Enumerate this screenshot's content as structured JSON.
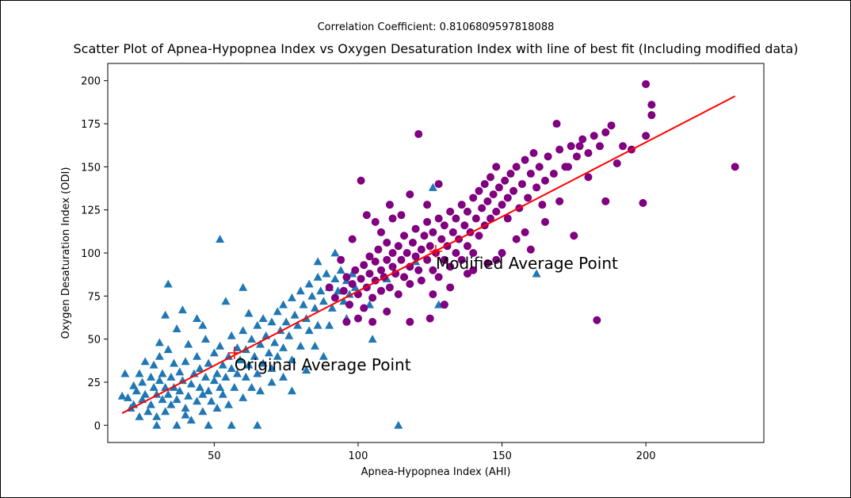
{
  "colors": {
    "original": "#1f77b4",
    "modified": "#800080",
    "fit_line": "#ff0000",
    "average_marker": "#ff0000"
  },
  "chart_data": {
    "type": "scatter",
    "suptitle": "Correlation Coefficient: 0.8106809597818088",
    "title": "Scatter Plot of Apnea-Hypopnea Index vs Oxygen Desaturation Index with line of best fit (Including modified data)",
    "xlabel": "Apnea-Hypopnea Index (AHI)",
    "ylabel": "Oxygen Desaturation Index (ODI)",
    "xlim": [
      13,
      241
    ],
    "ylim": [
      -10,
      210
    ],
    "xticks": [
      50,
      100,
      150,
      200
    ],
    "yticks": [
      0,
      25,
      50,
      75,
      100,
      125,
      150,
      175,
      200
    ],
    "grid": false,
    "series": [
      {
        "marker": "triangle",
        "points": [
          [
            18,
            17
          ],
          [
            20,
            16
          ],
          [
            19,
            30
          ],
          [
            21,
            10
          ],
          [
            22,
            12
          ],
          [
            23,
            20
          ],
          [
            24,
            5
          ],
          [
            25,
            15
          ],
          [
            22,
            23
          ],
          [
            24,
            30
          ],
          [
            25,
            25
          ],
          [
            26,
            18
          ],
          [
            27,
            8
          ],
          [
            26,
            37
          ],
          [
            28,
            28
          ],
          [
            28,
            12
          ],
          [
            29,
            22
          ],
          [
            30,
            18
          ],
          [
            30,
            5
          ],
          [
            29,
            35
          ],
          [
            31,
            26
          ],
          [
            31,
            40
          ],
          [
            32,
            15
          ],
          [
            33,
            8
          ],
          [
            32,
            30
          ],
          [
            33,
            22
          ],
          [
            34,
            18
          ],
          [
            35,
            28
          ],
          [
            35,
            12
          ],
          [
            34,
            44
          ],
          [
            36,
            36
          ],
          [
            36,
            22
          ],
          [
            37,
            0
          ],
          [
            37,
            15
          ],
          [
            38,
            31
          ],
          [
            38,
            20
          ],
          [
            39,
            26
          ],
          [
            40,
            10
          ],
          [
            40,
            37
          ],
          [
            41,
            17
          ],
          [
            41,
            47
          ],
          [
            42,
            24
          ],
          [
            42,
            3
          ],
          [
            43,
            30
          ],
          [
            44,
            14
          ],
          [
            44,
            40
          ],
          [
            45,
            22
          ],
          [
            45,
            33
          ],
          [
            46,
            18
          ],
          [
            46,
            8
          ],
          [
            47,
            28
          ],
          [
            47,
            50
          ],
          [
            48,
            20
          ],
          [
            48,
            36
          ],
          [
            49,
            14
          ],
          [
            50,
            26
          ],
          [
            50,
            42
          ],
          [
            51,
            30
          ],
          [
            51,
            10
          ],
          [
            52,
            22
          ],
          [
            52,
            46
          ],
          [
            53,
            35
          ],
          [
            53,
            18
          ],
          [
            54,
            28
          ],
          [
            55,
            40
          ],
          [
            55,
            12
          ],
          [
            56,
            33
          ],
          [
            56,
            52
          ],
          [
            57,
            22
          ],
          [
            58,
            45
          ],
          [
            58,
            30
          ],
          [
            59,
            38
          ],
          [
            60,
            16
          ],
          [
            60,
            55
          ],
          [
            61,
            28
          ],
          [
            61,
            44
          ],
          [
            62,
            35
          ],
          [
            63,
            50
          ],
          [
            63,
            22
          ],
          [
            64,
            40
          ],
          [
            65,
            58
          ],
          [
            65,
            30
          ],
          [
            66,
            47
          ],
          [
            67,
            36
          ],
          [
            67,
            62
          ],
          [
            68,
            52
          ],
          [
            69,
            42
          ],
          [
            70,
            60
          ],
          [
            70,
            33
          ],
          [
            71,
            48
          ],
          [
            72,
            66
          ],
          [
            72,
            40
          ],
          [
            73,
            55
          ],
          [
            74,
            70
          ],
          [
            74,
            45
          ],
          [
            75,
            60
          ],
          [
            76,
            52
          ],
          [
            77,
            74
          ],
          [
            77,
            38
          ],
          [
            78,
            64
          ],
          [
            79,
            58
          ],
          [
            80,
            78
          ],
          [
            80,
            46
          ],
          [
            81,
            70
          ],
          [
            82,
            62
          ],
          [
            83,
            82
          ],
          [
            83,
            55
          ],
          [
            84,
            75
          ],
          [
            85,
            68
          ],
          [
            86,
            86
          ],
          [
            86,
            58
          ],
          [
            87,
            78
          ],
          [
            88,
            72
          ],
          [
            89,
            88
          ],
          [
            90,
            80
          ],
          [
            91,
            68
          ],
          [
            92,
            85
          ],
          [
            93,
            78
          ],
          [
            94,
            90
          ],
          [
            95,
            72
          ],
          [
            96,
            84
          ],
          [
            97,
            76
          ],
          [
            98,
            88
          ],
          [
            99,
            80
          ],
          [
            34,
            82
          ],
          [
            52,
            108
          ],
          [
            30,
            0
          ],
          [
            48,
            0
          ],
          [
            56,
            0
          ],
          [
            65,
            0
          ],
          [
            40,
            6
          ],
          [
            44,
            62
          ],
          [
            37,
            56
          ],
          [
            31,
            48
          ],
          [
            60,
            80
          ],
          [
            70,
            25
          ],
          [
            77,
            20
          ],
          [
            85,
            46
          ],
          [
            90,
            58
          ],
          [
            105,
            50
          ],
          [
            114,
            0
          ],
          [
            126,
            138
          ],
          [
            162,
            88
          ],
          [
            86,
            95
          ],
          [
            92,
            100
          ],
          [
            104,
            70
          ],
          [
            110,
            85
          ],
          [
            120,
            95
          ],
          [
            128,
            70
          ],
          [
            33,
            64
          ],
          [
            39,
            67
          ],
          [
            46,
            58
          ],
          [
            54,
            72
          ],
          [
            62,
            65
          ],
          [
            66,
            20
          ],
          [
            74,
            28
          ],
          [
            82,
            32
          ],
          [
            88,
            40
          ],
          [
            96,
            62
          ]
        ]
      },
      {
        "marker": "circle",
        "points": [
          [
            92,
            74
          ],
          [
            95,
            78
          ],
          [
            96,
            86
          ],
          [
            97,
            70
          ],
          [
            98,
            82
          ],
          [
            99,
            90
          ],
          [
            100,
            76
          ],
          [
            101,
            85
          ],
          [
            102,
            93
          ],
          [
            102,
            68
          ],
          [
            103,
            80
          ],
          [
            104,
            88
          ],
          [
            104,
            98
          ],
          [
            105,
            74
          ],
          [
            106,
            84
          ],
          [
            106,
            95
          ],
          [
            107,
            102
          ],
          [
            108,
            78
          ],
          [
            108,
            90
          ],
          [
            109,
            86
          ],
          [
            110,
            96
          ],
          [
            110,
            106
          ],
          [
            111,
            80
          ],
          [
            112,
            92
          ],
          [
            112,
            100
          ],
          [
            113,
            88
          ],
          [
            114,
            104
          ],
          [
            114,
            76
          ],
          [
            115,
            96
          ],
          [
            116,
            86
          ],
          [
            116,
            110
          ],
          [
            117,
            100
          ],
          [
            118,
            92
          ],
          [
            118,
            82
          ],
          [
            119,
            106
          ],
          [
            120,
            98
          ],
          [
            120,
            114
          ],
          [
            121,
            90
          ],
          [
            122,
            102
          ],
          [
            122,
            84
          ],
          [
            123,
            110
          ],
          [
            124,
            96
          ],
          [
            124,
            118
          ],
          [
            125,
            104
          ],
          [
            126,
            90
          ],
          [
            126,
            112
          ],
          [
            127,
            100
          ],
          [
            128,
            120
          ],
          [
            128,
            86
          ],
          [
            129,
            108
          ],
          [
            130,
            96
          ],
          [
            130,
            116
          ],
          [
            131,
            104
          ],
          [
            132,
            124
          ],
          [
            132,
            92
          ],
          [
            133,
            112
          ],
          [
            134,
            100
          ],
          [
            134,
            120
          ],
          [
            135,
            108
          ],
          [
            136,
            128
          ],
          [
            136,
            96
          ],
          [
            137,
            116
          ],
          [
            138,
            104
          ],
          [
            138,
            124
          ],
          [
            139,
            112
          ],
          [
            140,
            132
          ],
          [
            140,
            100
          ],
          [
            141,
            120
          ],
          [
            142,
            110
          ],
          [
            142,
            136
          ],
          [
            143,
            126
          ],
          [
            144,
            116
          ],
          [
            144,
            140
          ],
          [
            145,
            130
          ],
          [
            146,
            120
          ],
          [
            146,
            144
          ],
          [
            147,
            134
          ],
          [
            148,
            124
          ],
          [
            148,
            150
          ],
          [
            149,
            138
          ],
          [
            150,
            128
          ],
          [
            151,
            142
          ],
          [
            152,
            132
          ],
          [
            152,
            120
          ],
          [
            153,
            146
          ],
          [
            154,
            136
          ],
          [
            155,
            150
          ],
          [
            156,
            126
          ],
          [
            157,
            140
          ],
          [
            158,
            154
          ],
          [
            159,
            132
          ],
          [
            160,
            146
          ],
          [
            161,
            158
          ],
          [
            162,
            138
          ],
          [
            163,
            150
          ],
          [
            164,
            128
          ],
          [
            165,
            142
          ],
          [
            166,
            156
          ],
          [
            168,
            146
          ],
          [
            170,
            160
          ],
          [
            172,
            150
          ],
          [
            174,
            162
          ],
          [
            176,
            156
          ],
          [
            178,
            166
          ],
          [
            180,
            158
          ],
          [
            182,
            168
          ],
          [
            184,
            162
          ],
          [
            186,
            170
          ],
          [
            188,
            174
          ],
          [
            169,
            175
          ],
          [
            200,
            198
          ],
          [
            202,
            186
          ],
          [
            202,
            180
          ],
          [
            200,
            168
          ],
          [
            199,
            129
          ],
          [
            231,
            150
          ],
          [
            183,
            61
          ],
          [
            121,
            169
          ],
          [
            101,
            142
          ],
          [
            192,
            162
          ],
          [
            177,
            162
          ],
          [
            173,
            150
          ],
          [
            165,
            118
          ],
          [
            158,
            112
          ],
          [
            150,
            100
          ],
          [
            140,
            90
          ],
          [
            130,
            70
          ],
          [
            125,
            62
          ],
          [
            118,
            60
          ],
          [
            110,
            66
          ],
          [
            105,
            60
          ],
          [
            100,
            62
          ],
          [
            96,
            60
          ],
          [
            108,
            112
          ],
          [
            115,
            122
          ],
          [
            112,
            120
          ],
          [
            106,
            118
          ],
          [
            124,
            128
          ],
          [
            118,
            134
          ],
          [
            128,
            140
          ],
          [
            145,
            94
          ],
          [
            138,
            88
          ],
          [
            132,
            80
          ],
          [
            126,
            76
          ],
          [
            103,
            122
          ],
          [
            111,
            128
          ],
          [
            98,
            108
          ],
          [
            94,
            96
          ],
          [
            90,
            80
          ],
          [
            160,
            102
          ],
          [
            155,
            108
          ],
          [
            148,
            96
          ],
          [
            175,
            110
          ],
          [
            170,
            130
          ],
          [
            180,
            144
          ],
          [
            186,
            130
          ],
          [
            190,
            152
          ],
          [
            195,
            160
          ]
        ]
      }
    ],
    "fit_line": {
      "x": [
        18,
        231
      ],
      "y": [
        7,
        191
      ]
    },
    "average_points": [
      {
        "x": 57,
        "y": 42,
        "label": "Original Average Point"
      },
      {
        "x": 127,
        "y": 101,
        "label": "Modified Average Point"
      }
    ]
  }
}
